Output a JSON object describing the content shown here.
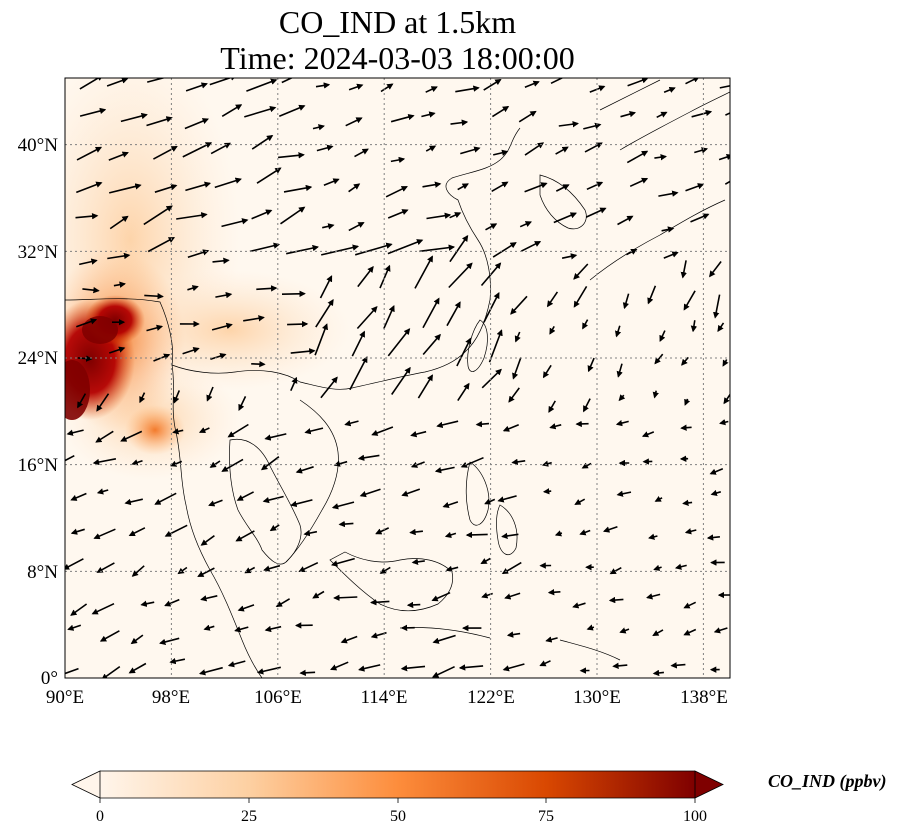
{
  "title": {
    "line1": "CO_IND at 1.5km",
    "line2": "Time: 2024-03-03 18:00:00"
  },
  "map": {
    "lon_range": [
      90,
      140
    ],
    "lat_range": [
      0,
      45
    ],
    "x_ticks": [
      "90°E",
      "98°E",
      "106°E",
      "114°E",
      "122°E",
      "130°E",
      "138°E"
    ],
    "y_ticks": [
      "0°",
      "8°N",
      "16°N",
      "24°N",
      "32°N",
      "40°N"
    ],
    "gridlines": true,
    "field": "CO_IND",
    "field_max_region": "Myanmar / Yunnan border, around 91–96°E, 20–28°N",
    "vectors": "wind arrows at 1.5 km"
  },
  "colorbar": {
    "label": "CO_IND (ppbv)",
    "ticks": [
      "0",
      "25",
      "50",
      "75",
      "100"
    ],
    "range": [
      0,
      100
    ],
    "extend": "both",
    "colormap": [
      "#fff5eb",
      "#fdd0a2",
      "#fd8d3c",
      "#d94801",
      "#7f0000"
    ]
  }
}
